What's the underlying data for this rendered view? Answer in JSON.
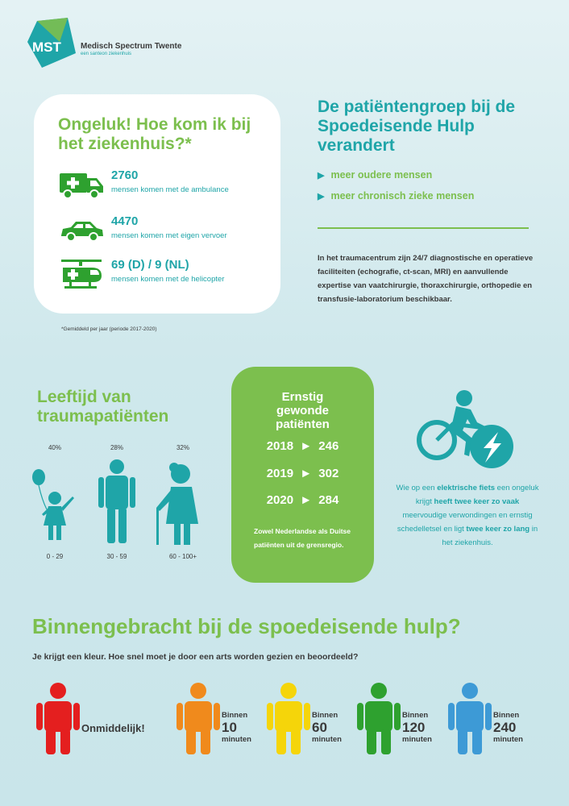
{
  "logo": {
    "mark": "MST",
    "name": "Medisch Spectrum Twente",
    "sub": "een santeon ziekenhuis"
  },
  "accident": {
    "title": "Ongeluk! Hoe kom ik bij het ziekenhuis?*",
    "rows": [
      {
        "icon": "ambulance-icon",
        "number": "2760",
        "desc": "mensen komen met de ambulance"
      },
      {
        "icon": "car-icon",
        "number": "4470",
        "desc": "mensen komen met eigen vervoer"
      },
      {
        "icon": "helicopter-icon",
        "number": "69 (D) / 9 (NL)",
        "desc": "mensen komen met de helicopter"
      }
    ],
    "footnote": "*Gemiddeld per jaar (periode 2017-2020)"
  },
  "patient_group": {
    "title": "De patiëntengroep bij de Spoedeisende Hulp verandert",
    "items": [
      "meer oudere mensen",
      "meer chronisch zieke mensen"
    ],
    "body": "In het traumacentrum zijn 24/7 diagnostische en operatieve faciliteiten (echografie, ct-scan, MRI) en aanvullende expertise van vaatchirurgie, thoraxchirurgie, orthopedie en transfusie-laboratorium beschikbaar."
  },
  "age": {
    "title": "Leeftijd van traumapatiënten",
    "groups": [
      {
        "percent": "40%",
        "range": "0 - 29"
      },
      {
        "percent": "28%",
        "range": "30 - 59"
      },
      {
        "percent": "32%",
        "range": "60 - 100+"
      }
    ]
  },
  "severe": {
    "title": "Ernstig gewonde patiënten",
    "years": [
      {
        "year": "2018",
        "arrow": "►",
        "value": "246"
      },
      {
        "year": "2019",
        "arrow": "►",
        "value": "302"
      },
      {
        "year": "2020",
        "arrow": "►",
        "value": "284"
      }
    ],
    "note": "Zowel Nederlandse als Duitse patiënten uit de grensregio."
  },
  "ebike": {
    "t1": "Wie op een ",
    "b1": "elektrische fiets",
    "t2": " een ongeluk krijgt ",
    "b2": "heeft twee keer zo vaak",
    "t3": " meervoudige verwondingen en ernstig schedelletsel en ligt ",
    "b3": "twee keer zo lang",
    "t4": " in het ziekenhuis."
  },
  "triage": {
    "title": "Binnengebracht bij de spoedeisende hulp?",
    "subtitle": "Je krijgt een kleur. Hoe snel moet je door een arts worden gezien en beoordeeld?",
    "immediate": "Onmiddelijk!",
    "levels": [
      {
        "color": "#e41f1f",
        "within": "",
        "number": "",
        "unit": ""
      },
      {
        "color": "#f08a1c",
        "within": "Binnen",
        "number": "10",
        "unit": "minuten"
      },
      {
        "color": "#f5d50a",
        "within": "Binnen",
        "number": "60",
        "unit": "minuten"
      },
      {
        "color": "#2ea12f",
        "within": "Binnen",
        "number": "120",
        "unit": "minuten"
      },
      {
        "color": "#3d9ad6",
        "within": "Binnen",
        "number": "240",
        "unit": "minuten"
      }
    ]
  },
  "colors": {
    "teal": "#1fa5a8",
    "green": "#7cbf4e"
  }
}
